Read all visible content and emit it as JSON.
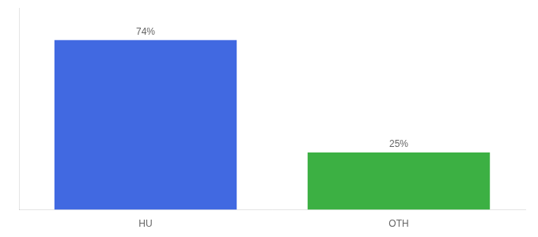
{
  "chart_data": {
    "type": "bar",
    "categories": [
      "HU",
      "OTH"
    ],
    "values": [
      74,
      25
    ],
    "value_labels": [
      "74%",
      "25%"
    ],
    "colors": [
      "#4169E1",
      "#3CB043"
    ],
    "ylim": [
      0,
      88
    ],
    "grid": false,
    "data_labels": true,
    "tick_labels": "x"
  }
}
